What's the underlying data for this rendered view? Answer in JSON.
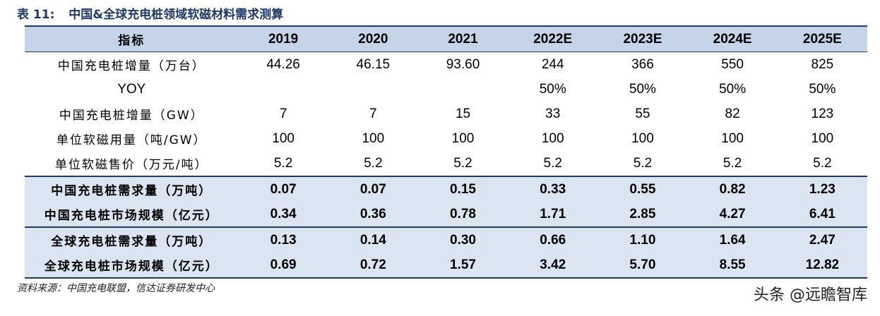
{
  "caption": {
    "prefix": "表 11:",
    "title": "中国&全球充电桩领域软磁材料需求测算"
  },
  "table": {
    "header": [
      "指标",
      "2019",
      "2020",
      "2021",
      "2022E",
      "2023E",
      "2024E",
      "2025E"
    ],
    "rows": [
      {
        "label": "中国充电桩增量（万台）",
        "values": [
          "44.26",
          "46.15",
          "93.60",
          "244",
          "366",
          "550",
          "825"
        ]
      },
      {
        "label": "YOY",
        "values": [
          "",
          "",
          "",
          "50%",
          "50%",
          "50%",
          "50%"
        ]
      },
      {
        "label": "中国充电桩增量（GW）",
        "values": [
          "7",
          "7",
          "15",
          "33",
          "55",
          "82",
          "123"
        ]
      },
      {
        "label": "单位软磁用量（吨/GW）",
        "values": [
          "100",
          "100",
          "100",
          "100",
          "100",
          "100",
          "100"
        ]
      },
      {
        "label": "单位软磁售价（万元/吨）",
        "values": [
          "5.2",
          "5.2",
          "5.2",
          "5.2",
          "5.2",
          "5.2",
          "5.2"
        ]
      },
      {
        "label": "中国充电桩需求量（万吨）",
        "values": [
          "0.07",
          "0.07",
          "0.15",
          "0.33",
          "0.55",
          "0.82",
          "1.23"
        ]
      },
      {
        "label": "中国充电桩市场规模（亿元）",
        "values": [
          "0.34",
          "0.36",
          "0.78",
          "1.71",
          "2.85",
          "4.27",
          "6.41"
        ]
      },
      {
        "label": "全球充电桩需求量（万吨）",
        "values": [
          "0.13",
          "0.14",
          "0.30",
          "0.66",
          "1.10",
          "1.64",
          "2.47"
        ]
      },
      {
        "label": "全球充电桩市场规模（亿元）",
        "values": [
          "0.69",
          "0.72",
          "1.57",
          "3.42",
          "5.70",
          "8.55",
          "12.82"
        ]
      }
    ]
  },
  "source": "资料来源：中国充电联盟，信达证券研发中心",
  "watermark": "头条 @远瞻智库"
}
